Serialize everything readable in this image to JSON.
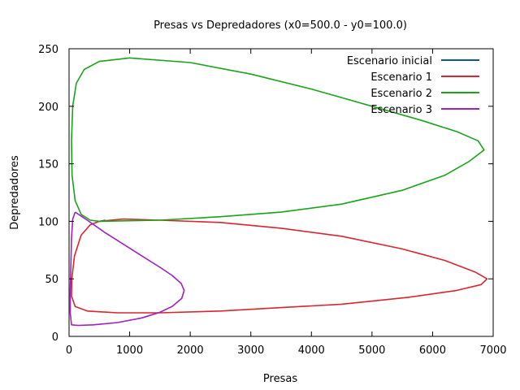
{
  "chart_data": {
    "type": "line",
    "title": "Presas vs Depredadores (x0=500.0 - y0=100.0)",
    "xlabel": "Presas",
    "ylabel": "Depredadores",
    "xlim": [
      0,
      7000
    ],
    "ylim": [
      0,
      250
    ],
    "x_ticks": [
      "0",
      "1000",
      "2000",
      "3000",
      "4000",
      "5000",
      "6000",
      "7000"
    ],
    "y_ticks": [
      "0",
      "50",
      "100",
      "150",
      "200",
      "250"
    ],
    "grid": false,
    "legend_position": "top-right",
    "series": [
      {
        "name": "Escenario inicial",
        "color": "#0a5a8c",
        "points": [
          [
            500,
            100
          ],
          [
            600,
            101
          ]
        ]
      },
      {
        "name": "Escenario 1",
        "color": "#d8262e",
        "points": [
          [
            500,
            100
          ],
          [
            900,
            102
          ],
          [
            1500,
            101
          ],
          [
            2500,
            99
          ],
          [
            3500,
            94
          ],
          [
            4500,
            87
          ],
          [
            5500,
            76
          ],
          [
            6200,
            66
          ],
          [
            6700,
            56
          ],
          [
            6900,
            50
          ],
          [
            6800,
            45
          ],
          [
            6400,
            40
          ],
          [
            5600,
            34
          ],
          [
            4500,
            28
          ],
          [
            3500,
            25
          ],
          [
            2500,
            22
          ],
          [
            1500,
            20.5
          ],
          [
            800,
            20.5
          ],
          [
            300,
            22
          ],
          [
            100,
            26
          ],
          [
            40,
            35
          ],
          [
            45,
            50
          ],
          [
            90,
            70
          ],
          [
            200,
            88
          ],
          [
            350,
            97
          ],
          [
            500,
            100
          ]
        ]
      },
      {
        "name": "Escenario 2",
        "color": "#18a518",
        "points": [
          [
            500,
            100
          ],
          [
            1500,
            101
          ],
          [
            2500,
            104
          ],
          [
            3500,
            108
          ],
          [
            4500,
            115
          ],
          [
            5500,
            127
          ],
          [
            6200,
            140
          ],
          [
            6600,
            152
          ],
          [
            6850,
            162
          ],
          [
            6750,
            170
          ],
          [
            6400,
            178
          ],
          [
            5800,
            188
          ],
          [
            5000,
            200
          ],
          [
            4000,
            215
          ],
          [
            3000,
            228
          ],
          [
            2000,
            238
          ],
          [
            1000,
            242
          ],
          [
            500,
            239
          ],
          [
            250,
            232
          ],
          [
            120,
            220
          ],
          [
            60,
            200
          ],
          [
            40,
            170
          ],
          [
            50,
            140
          ],
          [
            100,
            118
          ],
          [
            200,
            106
          ],
          [
            350,
            101
          ],
          [
            500,
            100
          ]
        ]
      },
      {
        "name": "Escenario 3",
        "color": "#a020c0",
        "points": [
          [
            100,
            108
          ],
          [
            300,
            101
          ],
          [
            600,
            90
          ],
          [
            900,
            80
          ],
          [
            1200,
            70
          ],
          [
            1500,
            60
          ],
          [
            1700,
            53
          ],
          [
            1850,
            46
          ],
          [
            1900,
            40
          ],
          [
            1860,
            33
          ],
          [
            1700,
            26
          ],
          [
            1500,
            21
          ],
          [
            1200,
            16
          ],
          [
            800,
            12
          ],
          [
            400,
            10
          ],
          [
            150,
            9.5
          ],
          [
            40,
            10
          ],
          [
            20,
            20
          ],
          [
            20,
            40
          ],
          [
            30,
            60
          ],
          [
            40,
            85
          ],
          [
            60,
            102
          ],
          [
            100,
            108
          ]
        ]
      }
    ]
  }
}
